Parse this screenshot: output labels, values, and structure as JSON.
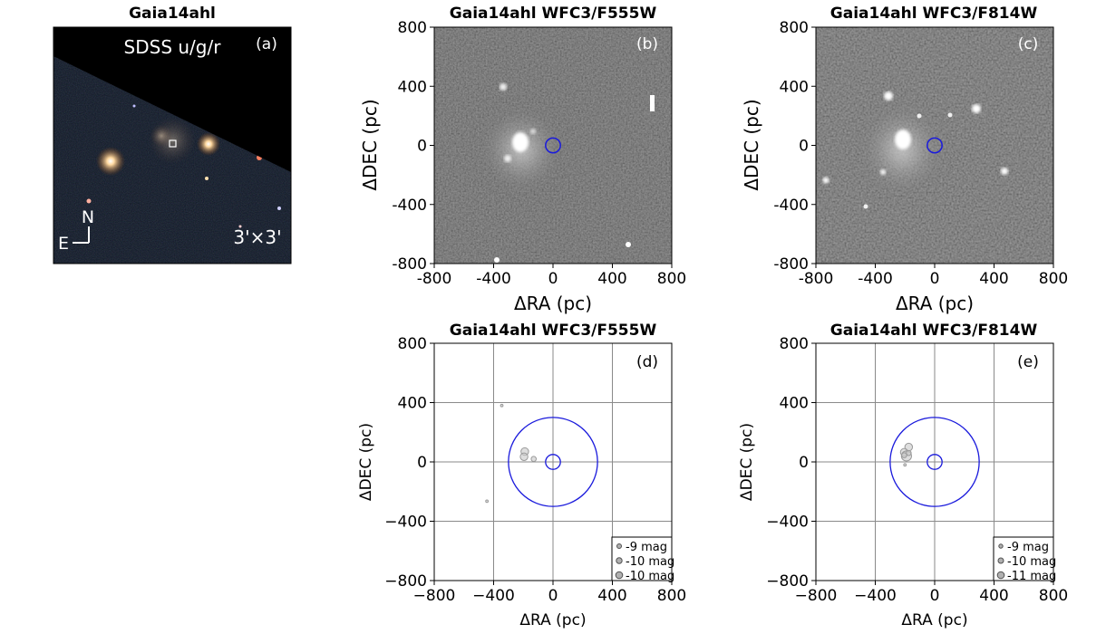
{
  "figure": {
    "panel_a": {
      "title": "Gaia14ahl",
      "label": "(a)",
      "filter_text": "SDSS u/g/r",
      "compass_n": "N",
      "compass_e": "E",
      "size_text": "3'×3'"
    }
  },
  "chart_data": [
    {
      "id": "b",
      "type": "image",
      "title": "Gaia14ahl WFC3/F555W",
      "panel_label": "(b)",
      "xlabel": "ΔRA (pc)",
      "ylabel": "ΔDEC (pc)",
      "xlim": [
        -800,
        800
      ],
      "ylim": [
        -800,
        800
      ],
      "xticks": [
        "-800",
        "-400",
        "0",
        "400",
        "800"
      ],
      "yticks": [
        "-800",
        "-400",
        "0",
        "400",
        "800"
      ],
      "marker": {
        "x": 0,
        "y": 0,
        "radius_pc": 50,
        "color": "#1a1adc"
      }
    },
    {
      "id": "c",
      "type": "image",
      "title": "Gaia14ahl WFC3/F814W",
      "panel_label": "(c)",
      "xlabel": "ΔRA (pc)",
      "ylabel": "ΔDEC (pc)",
      "xlim": [
        -800,
        800
      ],
      "ylim": [
        -800,
        800
      ],
      "xticks": [
        "-800",
        "-400",
        "0",
        "400",
        "800"
      ],
      "yticks": [
        "-800",
        "-400",
        "0",
        "400",
        "800"
      ],
      "marker": {
        "x": 0,
        "y": 0,
        "radius_pc": 50,
        "color": "#1a1adc"
      }
    },
    {
      "id": "d",
      "type": "scatter",
      "title": "Gaia14ahl WFC3/F555W",
      "panel_label": "(d)",
      "xlabel": "ΔRA (pc)",
      "ylabel": "ΔDEC (pc)",
      "xlim": [
        -800,
        800
      ],
      "ylim": [
        -800,
        800
      ],
      "xticks": [
        "−800",
        "−400",
        "0",
        "400",
        "800"
      ],
      "yticks": [
        "−800",
        "−400",
        "0",
        "400",
        "800"
      ],
      "grid": true,
      "circles": [
        {
          "x": 0,
          "y": 0,
          "r": 300,
          "color": "#1a1adc"
        },
        {
          "x": 0,
          "y": 0,
          "r": 50,
          "color": "#1a1adc"
        }
      ],
      "points": [
        {
          "x": -345,
          "y": 380,
          "mag": -8
        },
        {
          "x": -190,
          "y": 70,
          "mag": -10
        },
        {
          "x": -195,
          "y": 35,
          "mag": -10
        },
        {
          "x": -130,
          "y": 20,
          "mag": -9
        },
        {
          "x": -445,
          "y": -265,
          "mag": -8
        }
      ],
      "legend": {
        "position": "lower right",
        "entries": [
          "-9 mag",
          "-10 mag",
          "-10 mag"
        ],
        "sizes": [
          2.5,
          3.2,
          3.8
        ]
      }
    },
    {
      "id": "e",
      "type": "scatter",
      "title": "Gaia14ahl WFC3/F814W",
      "panel_label": "(e)",
      "xlabel": "ΔRA (pc)",
      "ylabel": "ΔDEC (pc)",
      "xlim": [
        -800,
        800
      ],
      "ylim": [
        -800,
        800
      ],
      "xticks": [
        "−800",
        "−400",
        "0",
        "400",
        "800"
      ],
      "yticks": [
        "−800",
        "−400",
        "0",
        "400",
        "800"
      ],
      "grid": true,
      "circles": [
        {
          "x": 0,
          "y": 0,
          "r": 300,
          "color": "#1a1adc"
        },
        {
          "x": 0,
          "y": 0,
          "r": 50,
          "color": "#1a1adc"
        }
      ],
      "points": [
        {
          "x": -175,
          "y": 100,
          "mag": -10
        },
        {
          "x": -205,
          "y": 65,
          "mag": -10
        },
        {
          "x": -190,
          "y": 40,
          "mag": -11
        },
        {
          "x": -175,
          "y": 60,
          "mag": -9
        },
        {
          "x": -205,
          "y": 45,
          "mag": -9
        },
        {
          "x": -200,
          "y": -20,
          "mag": -8
        }
      ],
      "legend": {
        "position": "lower right",
        "entries": [
          "-9 mag",
          "-10 mag",
          "-11 mag"
        ],
        "sizes": [
          2.2,
          3.0,
          3.8
        ]
      }
    }
  ]
}
